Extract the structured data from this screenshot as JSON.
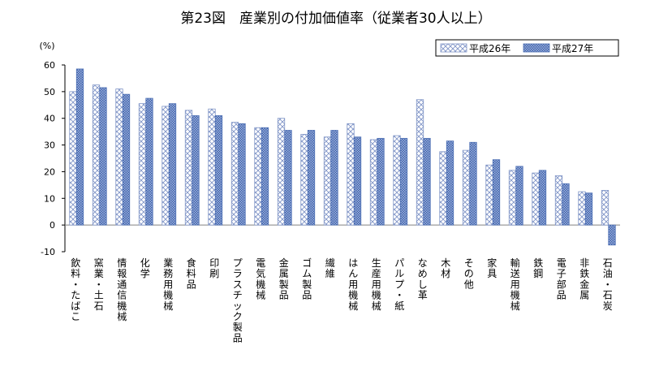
{
  "chart_data": {
    "type": "bar",
    "title": "第23図　産業別の付加価値率（従業者30人以上）",
    "y_unit": "(%)",
    "ylim": [
      -10,
      60
    ],
    "yticks": [
      -10,
      0,
      10,
      20,
      30,
      40,
      50,
      60
    ],
    "grid": true,
    "legend_position": "top-right",
    "categories": [
      "飲料・たばこ",
      "窯業・土石",
      "情報通信機械",
      "化学",
      "業務用機械",
      "食料品",
      "印刷",
      "プラスチック製品",
      "電気機械",
      "金属製品",
      "ゴム製品",
      "繊維",
      "はん用機械",
      "生産用機械",
      "パルプ・紙",
      "なめし革",
      "木材",
      "その他",
      "家具",
      "輸送用機械",
      "鉄鋼",
      "電子部品",
      "非鉄金属",
      "石油・石炭"
    ],
    "series": [
      {
        "name": "平成26年",
        "values": [
          50,
          52.5,
          51,
          45.5,
          44.5,
          43,
          43.5,
          38.5,
          36.5,
          40,
          34,
          33,
          38,
          32,
          33.5,
          47,
          27.5,
          28,
          22.5,
          20.5,
          19.5,
          18.5,
          12.5,
          13
        ]
      },
      {
        "name": "平成27年",
        "values": [
          58.5,
          51.5,
          49,
          47.5,
          45.5,
          41,
          41,
          38,
          36.5,
          35.5,
          35.5,
          35.5,
          33,
          32.5,
          32.5,
          32.5,
          31.5,
          31,
          24.5,
          22,
          20.5,
          15.5,
          12,
          -7.5
        ]
      }
    ],
    "colors": {
      "series1": "#7f94c7",
      "series2": "#4f71b5",
      "axis": "#000000",
      "zero_line": "#808080",
      "negative_tick": "#ff0000"
    }
  }
}
